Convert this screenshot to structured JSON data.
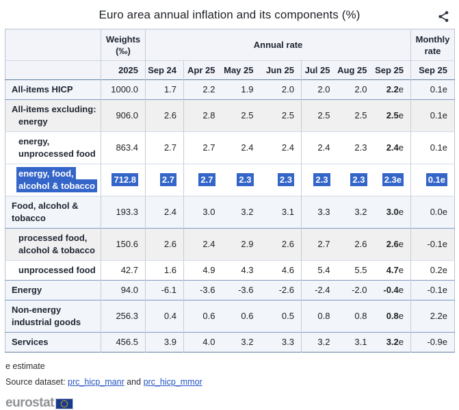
{
  "title": "Euro area annual inflation and its components (%)",
  "share_icon": "share-icon",
  "table": {
    "header": {
      "weights_l1": "Weights",
      "weights_l2": "(‰)",
      "annual_rate": "Annual rate",
      "monthly_l1": "Monthly",
      "monthly_l2": "rate",
      "year": "2025",
      "months": [
        "Sep 24",
        "Apr 25",
        "May 25",
        "Jun 25",
        "Jul 25",
        "Aug 25",
        "Sep 25"
      ],
      "monthly_month": "Sep 25"
    },
    "rows": [
      {
        "label_lines": [
          {
            "text": "All-items HICP",
            "indent": 0
          }
        ],
        "weight": "1000.0",
        "annual": [
          "1.7",
          "2.2",
          "1.9",
          "2.0",
          "2.0",
          "2.0",
          "2.2e"
        ],
        "monthly": "0.1e",
        "shade": "blue",
        "selected": false,
        "strong_top": false
      },
      {
        "label_lines": [
          {
            "text": "All-items excluding:",
            "indent": 0
          },
          {
            "text": "energy",
            "indent": 1
          }
        ],
        "weight": "906.0",
        "annual": [
          "2.6",
          "2.8",
          "2.5",
          "2.5",
          "2.5",
          "2.5",
          "2.5e"
        ],
        "monthly": "0.1e",
        "shade": "grey",
        "selected": false,
        "strong_top": true
      },
      {
        "label_lines": [
          {
            "text": "energy,",
            "indent": 1
          },
          {
            "text": "unprocessed food",
            "indent": 1
          }
        ],
        "weight": "863.4",
        "annual": [
          "2.7",
          "2.7",
          "2.4",
          "2.4",
          "2.4",
          "2.3",
          "2.4e"
        ],
        "monthly": "0.1e",
        "shade": "white",
        "selected": false,
        "strong_top": false
      },
      {
        "label_lines": [
          {
            "text": "energy, food,",
            "indent": 1
          },
          {
            "text": "alcohol & tobacco",
            "indent": 1
          }
        ],
        "weight": "712.8",
        "annual": [
          "2.7",
          "2.7",
          "2.3",
          "2.3",
          "2.3",
          "2.3",
          "2.3e"
        ],
        "monthly": "0.1e",
        "shade": "white",
        "selected": true,
        "strong_top": false
      },
      {
        "label_lines": [
          {
            "text": "Food, alcohol &",
            "indent": 0
          },
          {
            "text": "tobacco",
            "indent": 0
          }
        ],
        "weight": "193.3",
        "annual": [
          "2.4",
          "3.0",
          "3.2",
          "3.1",
          "3.3",
          "3.2",
          "3.0e"
        ],
        "monthly": "0.0e",
        "shade": "blue",
        "selected": false,
        "strong_top": false
      },
      {
        "label_lines": [
          {
            "text": "processed food,",
            "indent": 1
          },
          {
            "text": "alcohol & tobacco",
            "indent": 1
          }
        ],
        "weight": "150.6",
        "annual": [
          "2.6",
          "2.4",
          "2.9",
          "2.6",
          "2.7",
          "2.6",
          "2.6e"
        ],
        "monthly": "-0.1e",
        "shade": "grey",
        "selected": false,
        "strong_top": true
      },
      {
        "label_lines": [
          {
            "text": "unprocessed food",
            "indent": 1
          }
        ],
        "weight": "42.7",
        "annual": [
          "1.6",
          "4.9",
          "4.3",
          "4.6",
          "5.4",
          "5.5",
          "4.7e"
        ],
        "monthly": "0.2e",
        "shade": "white",
        "selected": false,
        "strong_top": false
      },
      {
        "label_lines": [
          {
            "text": "Energy",
            "indent": 0
          }
        ],
        "weight": "94.0",
        "annual": [
          "-6.1",
          "-3.6",
          "-3.6",
          "-2.6",
          "-2.4",
          "-2.0",
          "-0.4e"
        ],
        "monthly": "-0.1e",
        "shade": "blue",
        "selected": false,
        "strong_top": true
      },
      {
        "label_lines": [
          {
            "text": "Non-energy",
            "indent": 0
          },
          {
            "text": "industrial goods",
            "indent": 0
          }
        ],
        "weight": "256.3",
        "annual": [
          "0.4",
          "0.6",
          "0.6",
          "0.5",
          "0.8",
          "0.8",
          "0.8e"
        ],
        "monthly": "2.2e",
        "shade": "blue",
        "selected": false,
        "strong_top": true
      },
      {
        "label_lines": [
          {
            "text": "Services",
            "indent": 0
          }
        ],
        "weight": "456.5",
        "annual": [
          "3.9",
          "4.0",
          "3.2",
          "3.3",
          "3.2",
          "3.1",
          "3.2e"
        ],
        "monthly": "-0.9e",
        "shade": "blue",
        "selected": false,
        "strong_top": true
      }
    ]
  },
  "footer": {
    "estimate_note": "e estimate",
    "source_label": "Source dataset:",
    "source_link_1": "prc_hicp_manr",
    "source_conjunction": "and",
    "source_link_2": "prc_hicp_mmor",
    "logo_text": "eurostat"
  },
  "colors": {
    "selection_blue": "#3465c8",
    "link_blue": "#2353c2",
    "row_blue_tint": "#f2f5fa",
    "row_grey_tint": "#f0f0f1",
    "header_bg": "#f2f4f9",
    "border_strong": "#7e9ac0",
    "border_light": "#d3dbe6",
    "eu_flag_blue": "#18398c",
    "eu_star_yellow": "#ffcc00"
  }
}
